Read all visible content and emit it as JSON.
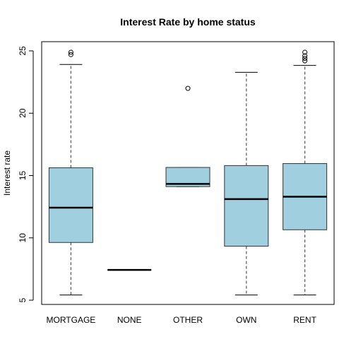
{
  "chart_data": {
    "type": "boxplot",
    "title": "Interest Rate by home status",
    "xlabel": "",
    "ylabel": "Interest rate",
    "ylim": [
      5,
      25
    ],
    "yticks": [
      5,
      10,
      15,
      20,
      25
    ],
    "categories": [
      "MORTGAGE",
      "NONE",
      "OTHER",
      "OWN",
      "RENT"
    ],
    "box_color": "#a0d0e0",
    "boxes": [
      {
        "category": "MORTGAGE",
        "whisker_low": 5.42,
        "q1": 9.63,
        "median": 12.42,
        "q3": 15.62,
        "whisker_high": 23.91,
        "outliers": [
          24.7,
          24.89
        ]
      },
      {
        "category": "NONE",
        "whisker_low": 7.43,
        "q1": 7.43,
        "median": 7.43,
        "q3": 7.43,
        "whisker_high": 7.43,
        "outliers": []
      },
      {
        "category": "OTHER",
        "whisker_low": 14.11,
        "q1": 14.11,
        "median": 14.33,
        "q3": 15.65,
        "whisker_high": 15.65,
        "outliers": [
          21.99
        ]
      },
      {
        "category": "OWN",
        "whisker_low": 5.42,
        "q1": 9.33,
        "median": 13.11,
        "q3": 15.8,
        "whisker_high": 23.28,
        "outliers": []
      },
      {
        "category": "RENT",
        "whisker_low": 5.42,
        "q1": 10.65,
        "median": 13.3,
        "q3": 15.96,
        "whisker_high": 23.83,
        "outliers": [
          24.2,
          24.4,
          24.6,
          24.89
        ]
      }
    ],
    "grid": false,
    "legend": "none"
  }
}
